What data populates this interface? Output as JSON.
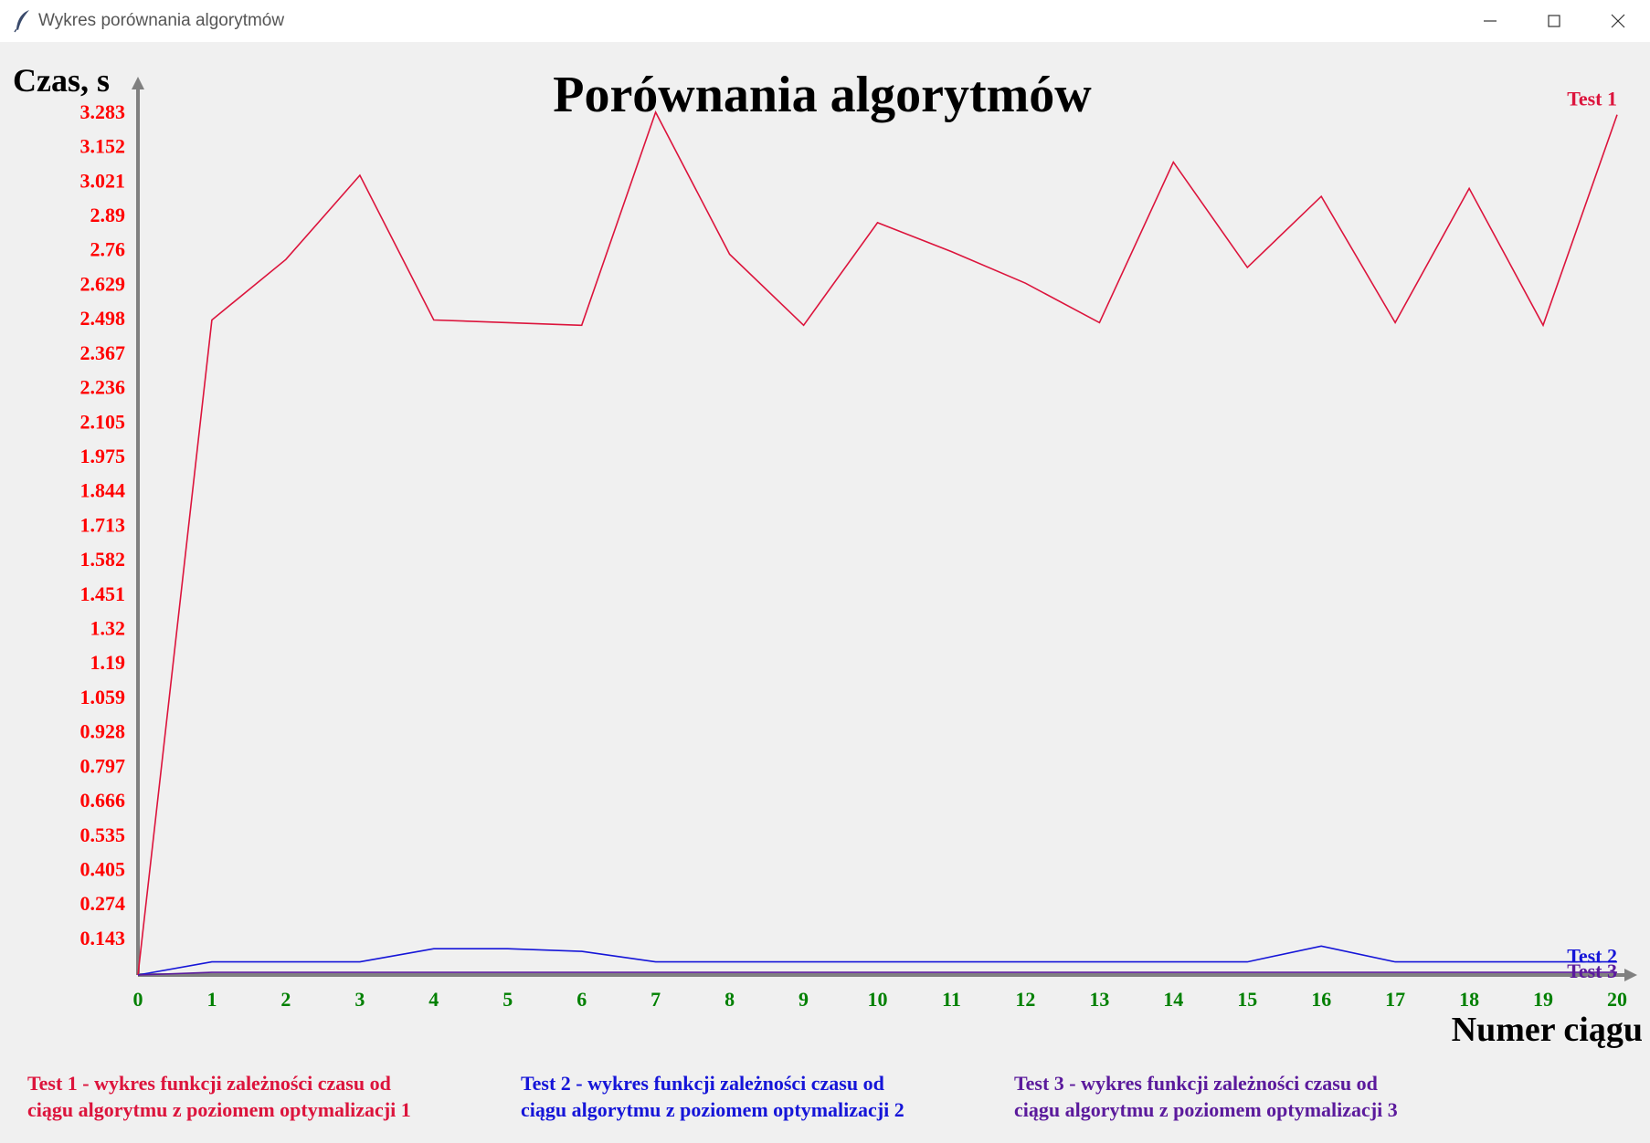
{
  "window": {
    "title": "Wykres porównania algorytmów",
    "icon": "feather-icon",
    "controls": [
      "minimize-icon",
      "maximize-icon",
      "close-icon"
    ]
  },
  "chart_data": {
    "type": "line",
    "title": "Porównania algorytmów",
    "ylabel": "Czas, s",
    "xlabel": "Numer ciągu",
    "x": [
      0,
      1,
      2,
      3,
      4,
      5,
      6,
      7,
      8,
      9,
      10,
      11,
      12,
      13,
      14,
      15,
      16,
      17,
      18,
      19,
      20
    ],
    "yticks": [
      "0.143",
      "0.274",
      "0.405",
      "0.535",
      "0.666",
      "0.797",
      "0.928",
      "1.059",
      "1.19",
      "1.32",
      "1.451",
      "1.582",
      "1.713",
      "1.844",
      "1.975",
      "2.105",
      "2.236",
      "2.367",
      "2.498",
      "2.629",
      "2.76",
      "2.89",
      "3.021",
      "3.152",
      "3.283"
    ],
    "ylim": [
      0,
      3.283
    ],
    "xlim": [
      0,
      20
    ],
    "grid": false,
    "series": [
      {
        "name": "Test 1",
        "color": "#dc143c",
        "values": [
          0,
          2.49,
          2.72,
          3.04,
          2.49,
          2.48,
          2.47,
          3.28,
          2.74,
          2.47,
          2.86,
          2.75,
          2.63,
          2.48,
          3.09,
          2.69,
          2.96,
          2.48,
          2.99,
          2.47,
          3.27
        ]
      },
      {
        "name": "Test 2",
        "color": "#1515d8",
        "values": [
          0,
          0.05,
          0.05,
          0.05,
          0.1,
          0.1,
          0.09,
          0.05,
          0.05,
          0.05,
          0.05,
          0.05,
          0.05,
          0.05,
          0.05,
          0.05,
          0.11,
          0.05,
          0.05,
          0.05,
          0.05
        ]
      },
      {
        "name": "Test 3",
        "color": "#5b1a9c",
        "values": [
          0,
          0.01,
          0.01,
          0.01,
          0.01,
          0.01,
          0.01,
          0.01,
          0.01,
          0.01,
          0.01,
          0.01,
          0.01,
          0.01,
          0.01,
          0.01,
          0.01,
          0.01,
          0.01,
          0.01,
          0.01
        ]
      }
    ],
    "colors": {
      "ytick": "#ff0000",
      "xtick": "#008000",
      "axis": "#808080",
      "text": "#000000"
    }
  },
  "legend": [
    {
      "line1": "Test 1 - wykres funkcji zależności czasu od",
      "line2": "ciągu algorytmu z poziomem optymalizacji 1"
    },
    {
      "line1": "Test 2 - wykres funkcji zależności czasu od",
      "line2": "ciągu algorytmu z poziomem optymalizacji 2"
    },
    {
      "line1": "Test 3 - wykres funkcji zależności czasu od",
      "line2": "ciągu algorytmu z poziomem optymalizacji 3"
    }
  ]
}
